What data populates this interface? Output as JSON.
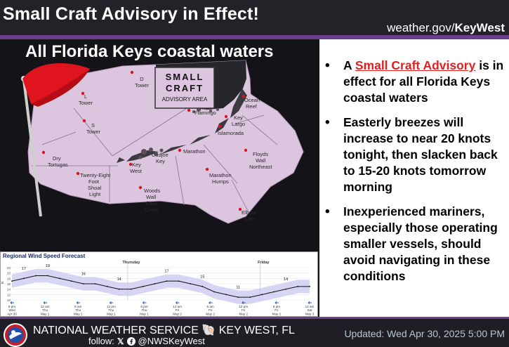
{
  "header": {
    "title": "Small Craft Advisory in Effect!",
    "url_prefix": "weather.gov/",
    "url_bold": "KeyWest"
  },
  "map": {
    "title": "All Florida Keys coastal waters",
    "legend": {
      "line1": "SMALL",
      "line2": "CRAFT",
      "line3": "ADVISORY AREA"
    },
    "labels": {
      "d_tower": "D\nTower",
      "l_tower": "L\nTower",
      "s_tower": "S\nTower",
      "flamingo": "Flamingo",
      "ocean_reef": "Ocean\nReef",
      "key_largo": "Key\nLargo",
      "islamorada": "Islamorada",
      "marathon": "Marathon",
      "cudjoe_key": "Cudjoe\nKey",
      "key_west": "Key\nWest",
      "dry_tortugas": "Dry\nTortugas",
      "twenty_eight": "Twenty-Eight\nFoot\nShoal\nLight",
      "woods_wall": "Woods\nWall\nEast\nCrack",
      "marathon_humps": "Marathon\nHumps",
      "floyds_wall": "Floyds\nWall\nNortheast",
      "elbow_cay": "Elbow\nCay"
    }
  },
  "bullets": [
    {
      "pre": "A ",
      "link": "Small Craft Advisory",
      "post": " is in effect for all Florida Keys coastal waters"
    },
    {
      "pre": "Easterly breezes will increase to near 20 knots tonight, then slacken back to 15-20 knots tomorrow morning",
      "link": "",
      "post": ""
    },
    {
      "pre": "Inexperienced mariners, especially those operating smaller vessels, should avoid navigating in these conditions",
      "link": "",
      "post": ""
    }
  ],
  "forecast": {
    "title": "Regional Wind Speed Forecast",
    "day_labels": [
      "Thursday",
      "Friday"
    ],
    "peak_labels": [
      "17",
      "19",
      "16",
      "14",
      "17",
      "15",
      "11",
      "14"
    ],
    "time_labels": [
      "6 pm\nWed\nApr 30",
      "12 am\nThu\nMay 1",
      "6 am\nThu\nMay 1",
      "12 pm\nThu\nMay 1",
      "6 pm\nThu\nMay 1",
      "12 am\nFri\nMay 2",
      "6 am\nFri\nMay 2",
      "12 pm\nFri\nMay 2",
      "6 pm\nFri\nMay 2",
      "12 am\nSat\nMay 3"
    ],
    "y_ticks": [
      "22",
      "20",
      "18",
      "16",
      "14",
      "12",
      "10"
    ],
    "y_unit": "kt",
    "series": [
      17,
      18,
      19,
      19,
      18,
      17,
      16,
      16,
      15,
      14,
      14,
      15,
      16,
      17,
      17,
      16,
      15,
      13,
      12,
      11,
      11,
      12,
      13,
      14,
      15,
      15
    ]
  },
  "footer": {
    "name": "NATIONAL WEATHER SERVICE",
    "office": "KEY WEST, FL",
    "follow_label": "follow:",
    "handle": "@NWSKeyWest",
    "updated": "Updated: Wed Apr 30, 2025 5:00 PM"
  },
  "colors": {
    "advisory_fill": "#dcc6df",
    "brand_purple": "#6b3f8e",
    "flag_red": "#e0141e",
    "link_red": "#e02020"
  },
  "icons": {
    "flag": "red-pennant-flag-icon",
    "shell": "conch-shell-icon",
    "x": "x-logo-icon",
    "facebook": "facebook-logo-icon",
    "nws": "nws-logo-icon"
  }
}
